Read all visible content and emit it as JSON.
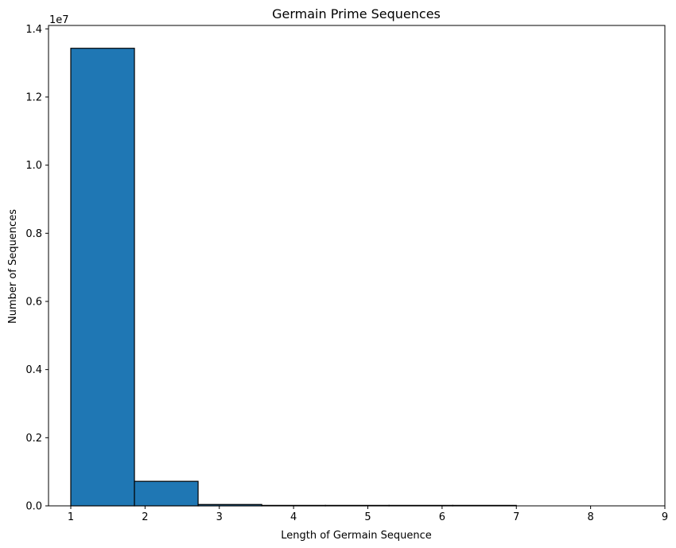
{
  "chart_data": {
    "type": "bar",
    "title": "Germain Prime Sequences",
    "xlabel": "Length of Germain Sequence",
    "ylabel": "Number of Sequences",
    "y_offset_label": "1e7",
    "xlim": [
      0.7,
      9
    ],
    "ylim": [
      0,
      14100000
    ],
    "x_ticks": [
      1,
      2,
      3,
      4,
      5,
      6,
      7,
      8,
      9
    ],
    "y_ticks": [
      0,
      2000000,
      4000000,
      6000000,
      8000000,
      10000000,
      12000000,
      14000000
    ],
    "y_tick_labels": [
      "0.0",
      "0.2",
      "0.4",
      "0.6",
      "0.8",
      "1.0",
      "1.2",
      "1.4"
    ],
    "bins": [
      {
        "x0": 1.0,
        "x1": 1.8571,
        "value": 13430000
      },
      {
        "x0": 1.8571,
        "x1": 2.7143,
        "value": 720000
      },
      {
        "x0": 2.7143,
        "x1": 3.5714,
        "value": 40000
      },
      {
        "x0": 3.5714,
        "x1": 4.4286,
        "value": 3000
      },
      {
        "x0": 4.4286,
        "x1": 5.2857,
        "value": 200
      },
      {
        "x0": 5.2857,
        "x1": 6.1429,
        "value": 10
      },
      {
        "x0": 6.1429,
        "x1": 7.0,
        "value": 1
      }
    ],
    "bar_color": "#1f77b4",
    "edge_color": "#000000",
    "grid": false,
    "legend": "none"
  }
}
